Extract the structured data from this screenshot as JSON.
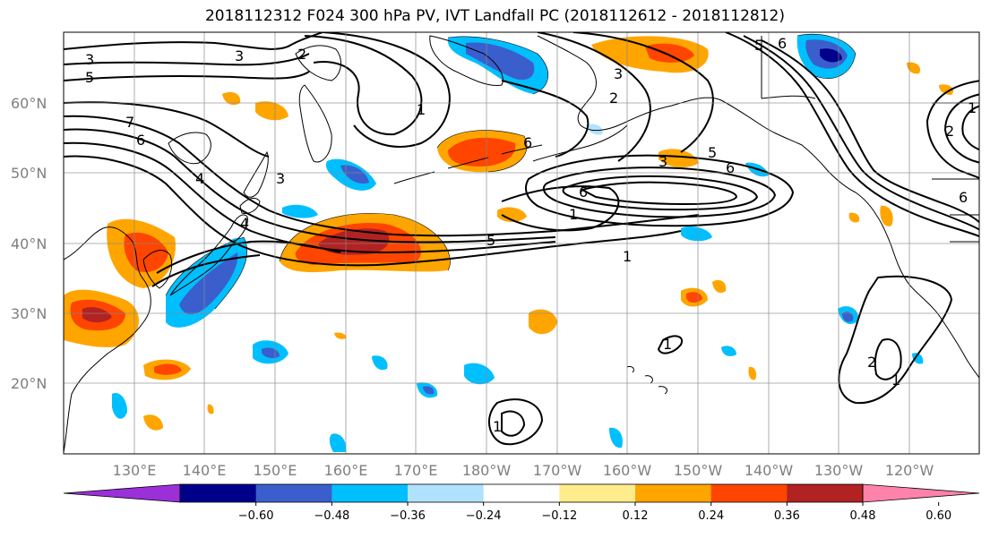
{
  "title": "2018112312 F024 300 hPa PV, IVT Landfall PC (2018112612 - 2018112812)",
  "lat_labels": [
    "60°N",
    "50°N",
    "40°N",
    "30°N",
    "20°N"
  ],
  "lon_labels": [
    "130°E",
    "140°E",
    "150°E",
    "160°E",
    "170°E",
    "180°W",
    "170°W",
    "160°W",
    "150°W",
    "140°W",
    "130°W",
    "120°W"
  ],
  "colorbar": {
    "tick_labels": [
      "−0.60",
      "−0.48",
      "−0.36",
      "−0.24",
      "−0.12",
      "0.12",
      "0.24",
      "0.36",
      "0.48",
      "0.60"
    ],
    "colors": [
      "#9b30d9",
      "#00008b",
      "#3a5fcd",
      "#00bfff",
      "#b0e2ff",
      "#ffffff",
      "#ffec8b",
      "#ffa500",
      "#ff4500",
      "#b22222",
      "#ff82ab"
    ]
  },
  "contour_labels": [
    "3",
    "5",
    "3",
    "2",
    "7",
    "6",
    "4",
    "4",
    "3",
    "1",
    "5",
    "1",
    "6",
    "5",
    "3",
    "6",
    "1",
    "2",
    "3",
    "5",
    "6",
    "6",
    "1",
    "2",
    "6",
    "1",
    "1",
    "2",
    "1"
  ]
}
